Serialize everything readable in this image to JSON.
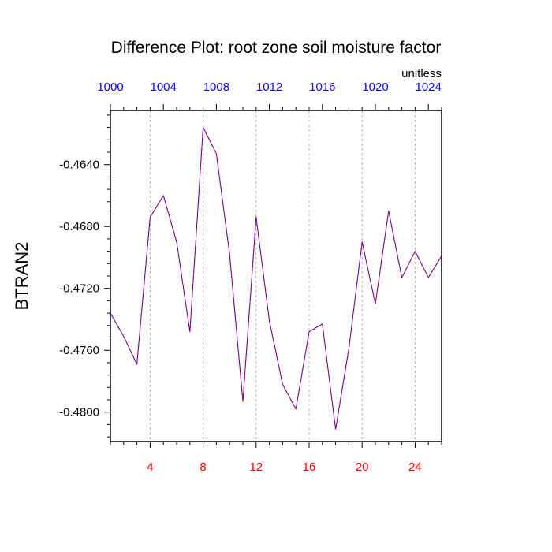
{
  "colors": {
    "background": "#ffffff",
    "frame": "#000000",
    "grid": "#b0b0b0",
    "line_primary": "#0000ff",
    "line_secondary": "#ff0000",
    "bottom_tick_labels": "#ff0000",
    "top_tick_labels": "#0000ff"
  },
  "chart_data": {
    "type": "line",
    "title": "Difference Plot: root zone soil moisture factor",
    "units_label": "unitless",
    "ylabel": "BTRAN2",
    "xlabel": "",
    "grid": "vertical dashed",
    "x": [
      1,
      2,
      3,
      4,
      5,
      6,
      7,
      8,
      9,
      10,
      11,
      12,
      13,
      14,
      15,
      16,
      17,
      18,
      19,
      20,
      21,
      22,
      23,
      24,
      25,
      26
    ],
    "xlim": [
      1,
      26
    ],
    "ylim": [
      -0.4819,
      -0.4605
    ],
    "bottom_axis": {
      "ticks": [
        4,
        8,
        12,
        16,
        20,
        24
      ],
      "labels": [
        "4",
        "8",
        "12",
        "16",
        "20",
        "24"
      ],
      "minor_step": 1
    },
    "top_axis": {
      "ticks": [
        1,
        5,
        9,
        13,
        17,
        21,
        25
      ],
      "labels": [
        "1000",
        "1004",
        "1008",
        "1012",
        "1016",
        "1020",
        "1024"
      ],
      "minor_step": 1
    },
    "left_axis": {
      "ticks": [
        -0.464,
        -0.468,
        -0.472,
        -0.476,
        -0.48
      ],
      "labels": [
        "-0.4640",
        "-0.4680",
        "-0.4720",
        "-0.4760",
        "-0.4800"
      ],
      "minor_step": 0.0008
    },
    "series": [
      {
        "color": "#0000ff",
        "style": "solid",
        "values": [
          -0.4736,
          -0.4751,
          -0.4769,
          -0.4674,
          -0.466,
          -0.469,
          -0.4748,
          -0.4616,
          -0.4633,
          -0.4698,
          -0.4793,
          -0.4674,
          -0.4741,
          -0.4782,
          -0.4798,
          -0.4748,
          -0.4743,
          -0.4811,
          -0.4759,
          -0.469,
          -0.473,
          -0.467,
          -0.4713,
          -0.4696,
          -0.4713,
          -0.4699
        ]
      },
      {
        "color": "#ff0000",
        "style": "dashed",
        "values": [
          -0.4736,
          -0.4751,
          -0.4769,
          -0.4674,
          -0.466,
          -0.469,
          -0.4748,
          -0.4616,
          -0.4633,
          -0.4698,
          -0.4793,
          -0.4674,
          -0.4741,
          -0.4782,
          -0.4798,
          -0.4748,
          -0.4743,
          -0.4811,
          -0.4759,
          -0.469,
          -0.473,
          -0.467,
          -0.4713,
          -0.4696,
          -0.4713,
          -0.4699
        ]
      }
    ]
  }
}
